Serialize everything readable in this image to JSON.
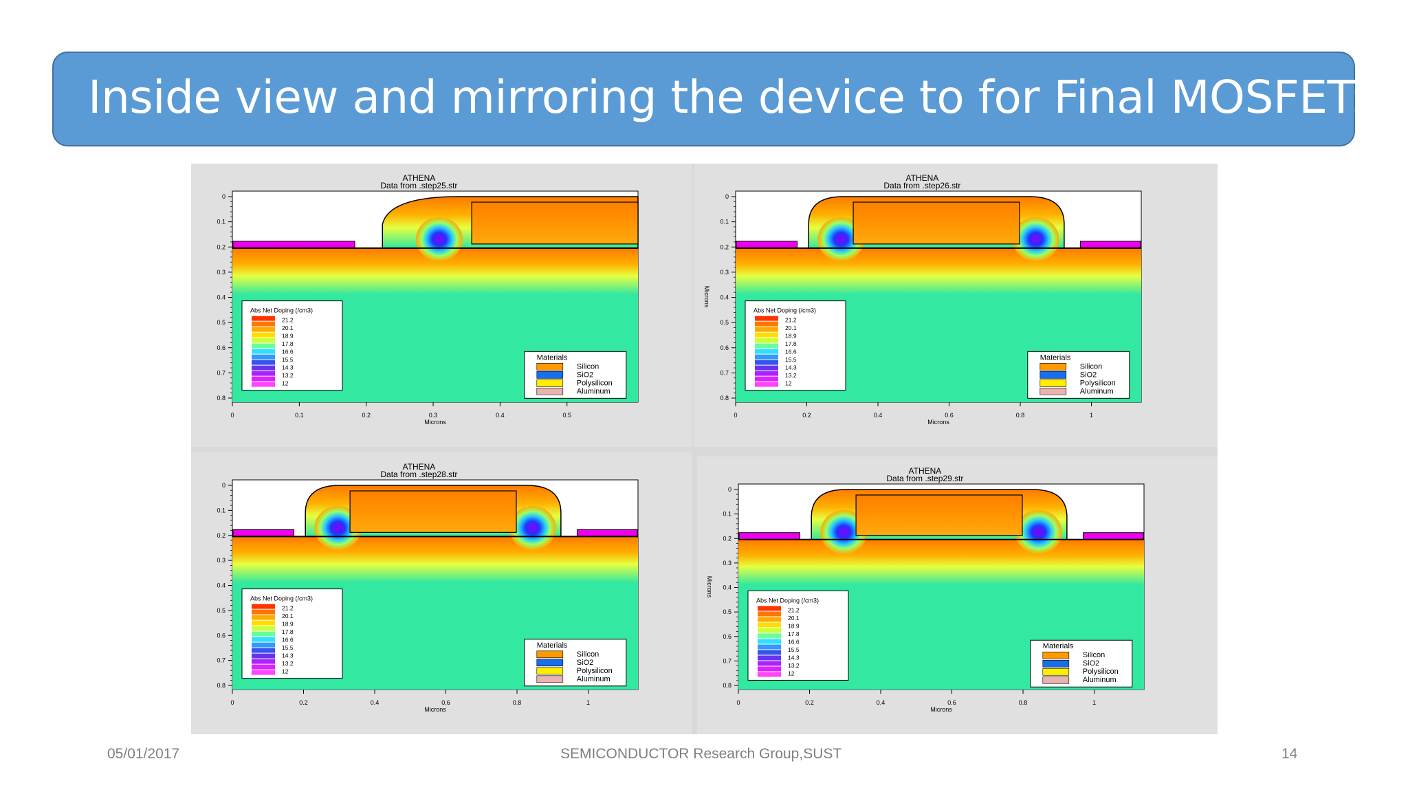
{
  "slide": {
    "title": "Inside view and mirroring the device to for Final MOSFET:",
    "footer_date": "05/01/2017",
    "footer_center": "SEMICONDUCTOR Research Group,SUST",
    "page_number": "14"
  },
  "colors": {
    "title_bg": "#5b9bd5",
    "silicon_substrate": "#33e8a0",
    "doping_high": "#ff8c00",
    "doping_low": "#e020ff",
    "silicon_swatch": "#ff9900",
    "sio2_swatch": "#1a6fe8",
    "polysilicon_swatch": "#ffee00",
    "aluminum_swatch": "#e8b4b0"
  },
  "panels": [
    {
      "heading": "ATHENA",
      "subheading": "Data from .step25.str",
      "ylabel": "",
      "xlabel": "Microns",
      "yticks": [
        "0",
        "0.1",
        "0.2",
        "0.3",
        "0.4",
        "0.5",
        "0.6",
        "0.7",
        "0.8"
      ],
      "xticks": [
        "0",
        "0.1",
        "0.2",
        "0.3",
        "0.4",
        "0.5"
      ],
      "legend_title": "Abs Net Doping (/cm3)",
      "legend_values": [
        "21.2",
        "20.1",
        "18.9",
        "17.8",
        "16.6",
        "15.5",
        "14.3",
        "13.2",
        "12"
      ],
      "materials_title": "Materials",
      "materials": [
        "Silicon",
        "SiO2",
        "Polysilicon",
        "Aluminum"
      ]
    },
    {
      "heading": "ATHENA",
      "subheading": "Data from .step26.str",
      "ylabel": "Microns",
      "xlabel": "Microns",
      "yticks": [
        "0",
        "0.1",
        "0.2",
        "0.3",
        "0.4",
        "0.5",
        "0.6",
        "0.7",
        "0.8"
      ],
      "xticks": [
        "0",
        "0.2",
        "0.4",
        "0.6",
        "0.8",
        "1"
      ],
      "legend_title": "Abs Net Doping (/cm3)",
      "legend_values": [
        "21.2",
        "20.1",
        "18.9",
        "17.8",
        "16.6",
        "15.5",
        "14.3",
        "13.2",
        "12"
      ],
      "materials_title": "Materials",
      "materials": [
        "Silicon",
        "SiO2",
        "Polysilicon",
        "Aluminum"
      ]
    },
    {
      "heading": "ATHENA",
      "subheading": "Data from .step28.str",
      "ylabel": "",
      "xlabel": "Microns",
      "yticks": [
        "0",
        "0.1",
        "0.2",
        "0.3",
        "0.4",
        "0.5",
        "0.6",
        "0.7",
        "0.8"
      ],
      "xticks": [
        "0",
        "0.2",
        "0.4",
        "0.6",
        "0.8",
        "1"
      ],
      "legend_title": "Abs Net Doping (/cm3)",
      "legend_values": [
        "21.2",
        "20.1",
        "18.9",
        "17.8",
        "16.6",
        "15.5",
        "14.3",
        "13.2",
        "12"
      ],
      "materials_title": "Materials",
      "materials": [
        "Silicon",
        "SiO2",
        "Polysilicon",
        "Aluminum"
      ]
    },
    {
      "heading": "ATHENA",
      "subheading": "Data from .step29.str",
      "ylabel": "Microns",
      "xlabel": "Microns",
      "yticks": [
        "0",
        "0.1",
        "0.2",
        "0.3",
        "0.4",
        "0.5",
        "0.6",
        "0.7",
        "0.8"
      ],
      "xticks": [
        "0",
        "0.2",
        "0.4",
        "0.6",
        "0.8",
        "1"
      ],
      "legend_title": "Abs Net Doping (/cm3)",
      "legend_values": [
        "21.2",
        "20.1",
        "18.9",
        "17.8",
        "16.6",
        "15.5",
        "14.3",
        "13.2",
        "12"
      ],
      "materials_title": "Materials",
      "materials": [
        "Silicon",
        "SiO2",
        "Polysilicon",
        "Aluminum"
      ]
    }
  ]
}
